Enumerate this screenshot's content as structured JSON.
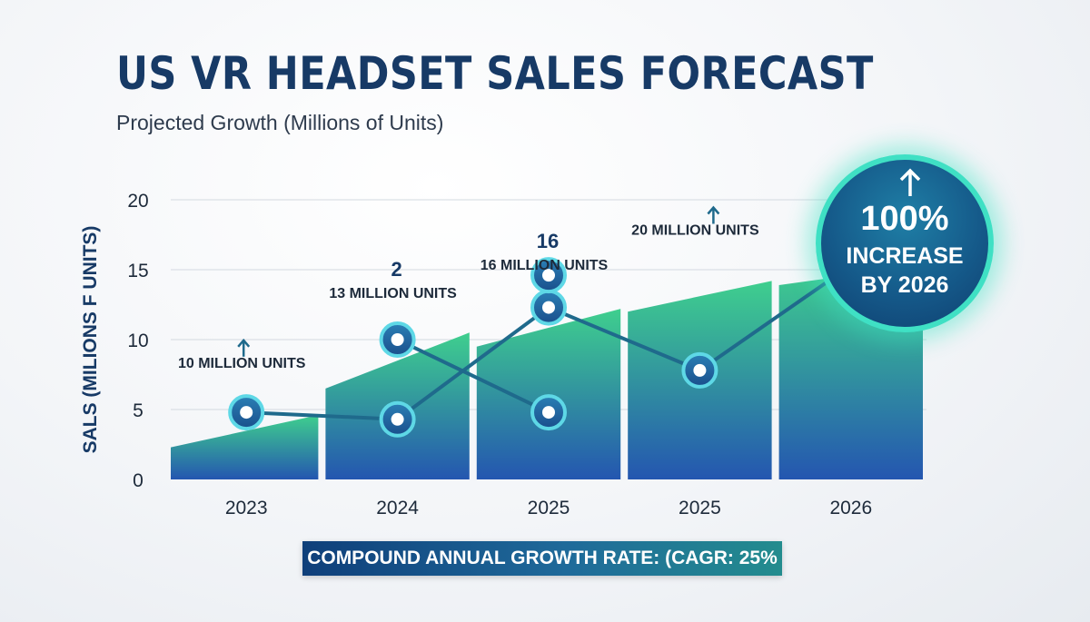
{
  "header": {
    "title": "US VR HEADSET SALES FORECAST",
    "subtitle": "Projected Growth (Millions of Units)"
  },
  "chart_data": {
    "type": "area",
    "title": "US VR HEADSET SALES FORECAST",
    "subtitle": "Projected Growth (Millions of Units)",
    "ylabel": "SALS (MILIONS F UNITS)",
    "xlabel": "",
    "ylim": [
      0,
      20
    ],
    "yticks": [
      "0",
      "5",
      "10",
      "15",
      "20"
    ],
    "categories": [
      "2023",
      "2024",
      "2025",
      "2025",
      "2026"
    ],
    "grid": true,
    "area_segments": [
      [
        2.3,
        4.6
      ],
      [
        6.5,
        10.5
      ],
      [
        9.5,
        12.2
      ],
      [
        12.0,
        14.2
      ],
      [
        13.9,
        15.3
      ]
    ],
    "series": [
      {
        "values": [
          {
            "x": "2023",
            "y": 4.8
          },
          {
            "x": "2024",
            "y": 4.3
          },
          {
            "x": "2025",
            "y": 12.3
          },
          {
            "x": "2025",
            "y": 7.8
          },
          {
            "x": "2026",
            "y": 15.3
          }
        ]
      },
      {
        "values": [
          {
            "x": "2024",
            "y": 10.0
          },
          {
            "x": "2025",
            "y": 4.8
          }
        ]
      },
      {
        "values": [
          {
            "x": "2025",
            "y": 14.6
          }
        ]
      }
    ],
    "annotations": [
      {
        "text": "10 MILLION UNITS",
        "arrow": true,
        "number": "",
        "x": "2023",
        "y": 8.0
      },
      {
        "text": "13 MILLION UNITS",
        "arrow": false,
        "number": "2",
        "x": "2024",
        "y": 13.0
      },
      {
        "text": "16 MILLION UNITS",
        "arrow": false,
        "number": "16",
        "x": "2025",
        "y": 15.0
      },
      {
        "text": "20 MILLION UNITS",
        "arrow": true,
        "number": "",
        "x": "2025",
        "y": 17.5
      }
    ],
    "footer": "COMPOUND ANNUAL GROWTH RATE: (CAGR: 25%",
    "callout": {
      "big": "100%",
      "line1": "INCREASE",
      "line2": "BY 2026"
    }
  },
  "colors": {
    "title": "#173a66",
    "area_top": "#3fcf8e",
    "area_bottom": "#2456b0",
    "line": "#1f6a8c",
    "marker_fill": "#1f5f9a",
    "marker_ring": "#5ed8e6",
    "accent": "#3fe0c4"
  },
  "icons": {
    "annotation_arrow": "arrow-up-icon",
    "callout_arrow": "arrow-up-icon"
  }
}
